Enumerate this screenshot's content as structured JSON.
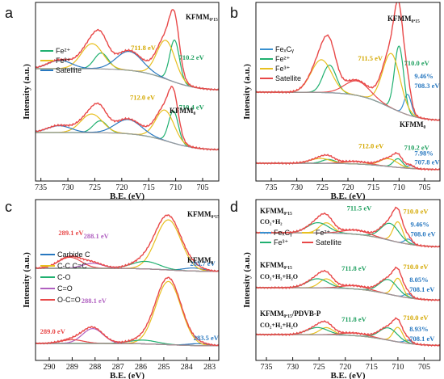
{
  "chart_data": [
    {
      "type": "line",
      "panel": "a",
      "xlabel": "B.E. (eV)",
      "ylabel": "Intensity (a.u.)",
      "xlim": [
        736,
        702
      ],
      "xticks": [
        735,
        730,
        725,
        720,
        715,
        710,
        705
      ],
      "legend": {
        "placement": "left-middle",
        "entries": [
          {
            "name": "Fe²⁺",
            "color": "#20b070"
          },
          {
            "name": "Fe³⁺",
            "color": "#e8c020"
          },
          {
            "name": "Satellite",
            "color": "#2878c0"
          }
        ]
      },
      "spectra": [
        {
          "sample": "KFMM₀.₁₅",
          "annotations": [
            {
              "text": "711.8 eV",
              "color": "#d4a800"
            },
            {
              "text": "710.2 eV",
              "color": "#20a060"
            }
          ],
          "components": [
            {
              "role": "Fe²⁺",
              "color": "#20b070",
              "peaks": [
                [
                  710.2,
                  1.0,
                  0.9
                ],
                [
                  723.8,
                  0.38,
                  1.3
                ]
              ]
            },
            {
              "role": "Fe³⁺",
              "color": "#e8c020",
              "peaks": [
                [
                  711.8,
                  0.92,
                  1.7
                ],
                [
                  725.5,
                  0.6,
                  2.0
                ]
              ]
            },
            {
              "role": "Satellite",
              "color": "#2878c0",
              "peaks": [
                [
                  718.6,
                  0.45,
                  2.4
                ],
                [
                  731.5,
                  0.2,
                  2.2
                ]
              ]
            },
            {
              "role": "envelope",
              "color": "#e84848"
            },
            {
              "role": "background",
              "color": "#999999"
            }
          ]
        },
        {
          "sample": "KFMM₀",
          "annotations": [
            {
              "text": "712.0 eV",
              "color": "#d4a800"
            },
            {
              "text": "710.4 eV",
              "color": "#20a060"
            }
          ],
          "components": [
            {
              "role": "Fe²⁺",
              "color": "#20b070",
              "peaks": [
                [
                  710.4,
                  0.95,
                  0.9
                ],
                [
                  724.0,
                  0.35,
                  1.3
                ]
              ]
            },
            {
              "role": "Fe³⁺",
              "color": "#e8c020",
              "peaks": [
                [
                  712.0,
                  0.9,
                  1.7
                ],
                [
                  725.6,
                  0.55,
                  2.0
                ]
              ]
            },
            {
              "role": "Satellite",
              "color": "#2878c0",
              "peaks": [
                [
                  718.8,
                  0.42,
                  2.4
                ],
                [
                  731.6,
                  0.2,
                  2.2
                ]
              ]
            },
            {
              "role": "envelope",
              "color": "#e84848"
            },
            {
              "role": "background",
              "color": "#999999"
            }
          ]
        }
      ]
    },
    {
      "type": "line",
      "panel": "b",
      "xlabel": "B.E. (eV)",
      "ylabel": "Intensity (a.u.)",
      "xlim": [
        738,
        702
      ],
      "xticks": [
        735,
        730,
        725,
        720,
        715,
        710,
        705
      ],
      "legend": {
        "placement": "left-middle",
        "entries": [
          {
            "name": "FeₓCᵧ",
            "color": "#3890d0"
          },
          {
            "name": "Fe²⁺",
            "color": "#20b070"
          },
          {
            "name": "Fe³⁺",
            "color": "#e8c020"
          },
          {
            "name": "Satellite",
            "color": "#e84848"
          }
        ]
      },
      "spectra": [
        {
          "sample": "KFMM₀.₁₅",
          "annotations": [
            {
              "text": "711.5 eV",
              "color": "#d4a800"
            },
            {
              "text": "710.0 eV",
              "color": "#20a060"
            },
            {
              "text": "9.46%",
              "color": "#2878c0"
            },
            {
              "text": "708.3 eV",
              "color": "#2878c0"
            }
          ],
          "components": [
            {
              "role": "FeₓCᵧ",
              "color": "#3890d0",
              "peaks": [
                [
                  708.3,
                  0.28,
                  0.7
                ]
              ]
            },
            {
              "role": "Fe²⁺",
              "color": "#20b070",
              "peaks": [
                [
                  710.0,
                  0.9,
                  0.9
                ],
                [
                  723.6,
                  0.38,
                  1.3
                ]
              ]
            },
            {
              "role": "Fe³⁺",
              "color": "#e8c020",
              "peaks": [
                [
                  711.5,
                  0.75,
                  1.7
                ],
                [
                  725.2,
                  0.45,
                  2.0
                ]
              ]
            },
            {
              "role": "Satellite",
              "color": "#e84848",
              "peaks": [
                [
                  718.2,
                  0.2,
                  2.4
                ]
              ]
            },
            {
              "role": "envelope",
              "color": "#e84848"
            },
            {
              "role": "background",
              "color": "#999999"
            }
          ]
        },
        {
          "sample": "KFMM₀",
          "annotations": [
            {
              "text": "712.0 eV",
              "color": "#d4a800"
            },
            {
              "text": "710.2 eV",
              "color": "#20a060"
            },
            {
              "text": "7.98%",
              "color": "#2878c0"
            },
            {
              "text": "707.8 eV",
              "color": "#2878c0"
            }
          ],
          "components": [
            {
              "role": "FeₓCᵧ",
              "color": "#3890d0",
              "peaks": [
                [
                  707.8,
                  0.06,
                  0.7
                ]
              ]
            },
            {
              "role": "Fe²⁺",
              "color": "#20b070",
              "peaks": [
                [
                  710.2,
                  0.18,
                  0.9
                ],
                [
                  723.8,
                  0.08,
                  1.3
                ]
              ]
            },
            {
              "role": "Fe³⁺",
              "color": "#e8c020",
              "peaks": [
                [
                  712.0,
                  0.16,
                  1.7
                ],
                [
                  725.4,
                  0.1,
                  2.0
                ]
              ]
            },
            {
              "role": "Satellite",
              "color": "#e84848",
              "peaks": [
                [
                  718.5,
                  0.05,
                  2.4
                ]
              ]
            },
            {
              "role": "envelope",
              "color": "#e84848"
            },
            {
              "role": "background",
              "color": "#999999"
            }
          ]
        }
      ]
    },
    {
      "type": "line",
      "panel": "c",
      "xlabel": "B.E. (eV)",
      "ylabel": "Intensity (a.u.)",
      "xlim": [
        290.6,
        282.6
      ],
      "xticks": [
        290,
        289,
        288,
        287,
        286,
        285,
        284,
        283
      ],
      "legend": {
        "placement": "left-middle",
        "entries": [
          {
            "name": "Carbide C",
            "color": "#2878c0"
          },
          {
            "name": "C-C  C=C",
            "color": "#e8c020"
          },
          {
            "name": "C-O",
            "color": "#20b070"
          },
          {
            "name": "C=O",
            "color": "#b060c0"
          },
          {
            "name": "O-C=O",
            "color": "#e84848"
          }
        ]
      },
      "spectra": [
        {
          "sample": "KFMM₀.₁₅",
          "annotations": [
            {
              "text": "289.1 eV",
              "color": "#e84848"
            },
            {
              "text": "288.1 eV",
              "color": "#b060c0"
            },
            {
              "text": "283.7 eV",
              "color": "#2878c0"
            }
          ],
          "components": [
            {
              "role": "Carbide C",
              "color": "#2878c0",
              "peaks": [
                [
                  283.7,
                  0.06,
                  0.45
                ]
              ]
            },
            {
              "role": "C-C  C=C",
              "color": "#e8c020",
              "peaks": [
                [
                  284.8,
                  1.0,
                  0.55
                ]
              ]
            },
            {
              "role": "C-O",
              "color": "#20b070",
              "peaks": [
                [
                  285.8,
                  0.15,
                  0.6
                ]
              ]
            },
            {
              "role": "C=O",
              "color": "#b060c0",
              "peaks": [
                [
                  288.1,
                  0.1,
                  0.45
                ]
              ]
            },
            {
              "role": "O-C=O",
              "color": "#e84848",
              "peaks": [
                [
                  289.1,
                  0.22,
                  0.5
                ]
              ]
            },
            {
              "role": "envelope",
              "color": "#e84848"
            },
            {
              "role": "background",
              "color": "#999999"
            }
          ]
        },
        {
          "sample": "KFMM₀",
          "annotations": [
            {
              "text": "288.1 eV",
              "color": "#b060c0"
            },
            {
              "text": "289.0 eV",
              "color": "#e84848"
            },
            {
              "text": "283.5 eV",
              "color": "#2878c0"
            }
          ],
          "components": [
            {
              "role": "Carbide C",
              "color": "#2878c0",
              "peaks": [
                [
                  283.5,
                  0.05,
                  0.45
                ]
              ]
            },
            {
              "role": "C-C  C=C",
              "color": "#e8c020",
              "peaks": [
                [
                  284.8,
                  1.7,
                  0.55
                ]
              ]
            },
            {
              "role": "C-O",
              "color": "#20b070",
              "peaks": [
                [
                  285.9,
                  0.1,
                  0.6
                ]
              ]
            },
            {
              "role": "C=O",
              "color": "#b060c0",
              "peaks": [
                [
                  288.1,
                  0.4,
                  0.45
                ]
              ]
            },
            {
              "role": "O-C=O",
              "color": "#e84848",
              "peaks": [
                [
                  289.0,
                  0.1,
                  0.5
                ]
              ]
            },
            {
              "role": "envelope",
              "color": "#e84848"
            },
            {
              "role": "background",
              "color": "#999999"
            }
          ]
        }
      ]
    },
    {
      "type": "line",
      "panel": "d",
      "xlabel": "B.E. (eV)",
      "ylabel": "Intensity (a.u.)",
      "xlim": [
        737,
        702
      ],
      "xticks": [
        735,
        730,
        725,
        720,
        715,
        710,
        705
      ],
      "legend": {
        "placement": "top-middle",
        "entries": [
          {
            "name": "FeₓCᵧ",
            "color": "#3890d0"
          },
          {
            "name": "Fe²⁺",
            "color": "#e8c020"
          },
          {
            "name": "Fe³⁺",
            "color": "#20b070"
          },
          {
            "name": "Satellite",
            "color": "#e84848"
          }
        ]
      },
      "spectra": [
        {
          "sample": "KFMM₀.₁₅",
          "condition": "CO₂+H₂",
          "annotations": [
            {
              "text": "711.5 eV",
              "color": "#20a060"
            },
            {
              "text": "710.0 eV",
              "color": "#d4a800"
            },
            {
              "text": "9.46%",
              "color": "#2878c0"
            },
            {
              "text": "708.0 eV",
              "color": "#2878c0"
            }
          ],
          "components": [
            {
              "role": "FeₓCᵧ",
              "color": "#3890d0",
              "peaks": [
                [
                  708.0,
                  0.15,
                  0.7
                ]
              ]
            },
            {
              "role": "Fe²⁺",
              "color": "#e8c020",
              "peaks": [
                [
                  710.0,
                  0.6,
                  0.9
                ],
                [
                  723.6,
                  0.3,
                  1.3
                ]
              ]
            },
            {
              "role": "Fe³⁺",
              "color": "#20b070",
              "peaks": [
                [
                  711.5,
                  0.5,
                  1.7
                ],
                [
                  725.2,
                  0.3,
                  2.0
                ]
              ]
            },
            {
              "role": "Satellite",
              "color": "#e84848",
              "peaks": [
                [
                  718.0,
                  0.12,
                  2.4
                ]
              ]
            },
            {
              "role": "envelope",
              "color": "#e84848"
            },
            {
              "role": "background",
              "color": "#999999"
            }
          ]
        },
        {
          "sample": "KFMM₀.₁₅",
          "condition": "CO₂+H₂+H₂O",
          "annotations": [
            {
              "text": "711.8 eV",
              "color": "#20a060"
            },
            {
              "text": "710.0 eV",
              "color": "#d4a800"
            },
            {
              "text": "8.05%",
              "color": "#2878c0"
            },
            {
              "text": "708.1 eV",
              "color": "#2878c0"
            }
          ],
          "components": [
            {
              "role": "FeₓCᵧ",
              "color": "#3890d0",
              "peaks": [
                [
                  708.1,
                  0.12,
                  0.7
                ]
              ]
            },
            {
              "role": "Fe²⁺",
              "color": "#e8c020",
              "peaks": [
                [
                  710.0,
                  0.55,
                  0.9
                ],
                [
                  723.6,
                  0.28,
                  1.3
                ]
              ]
            },
            {
              "role": "Fe³⁺",
              "color": "#20b070",
              "peaks": [
                [
                  711.8,
                  0.45,
                  1.7
                ],
                [
                  725.3,
                  0.28,
                  2.0
                ]
              ]
            },
            {
              "role": "Satellite",
              "color": "#e84848",
              "peaks": [
                [
                  718.2,
                  0.1,
                  2.4
                ]
              ]
            },
            {
              "role": "envelope",
              "color": "#e84848"
            },
            {
              "role": "background",
              "color": "#999999"
            }
          ]
        },
        {
          "sample": "KFMM₀.₁₅/PDVB-P",
          "condition": "CO₂+H₂+H₂O",
          "annotations": [
            {
              "text": "711.8 eV",
              "color": "#20a060"
            },
            {
              "text": "710.0 eV",
              "color": "#d4a800"
            },
            {
              "text": "8.93%",
              "color": "#2878c0"
            },
            {
              "text": "708.1 eV",
              "color": "#2878c0"
            }
          ],
          "components": [
            {
              "role": "FeₓCᵧ",
              "color": "#3890d0",
              "peaks": [
                [
                  708.1,
                  0.1,
                  0.7
                ]
              ]
            },
            {
              "role": "Fe²⁺",
              "color": "#e8c020",
              "peaks": [
                [
                  710.0,
                  0.45,
                  0.9
                ],
                [
                  723.6,
                  0.22,
                  1.3
                ]
              ]
            },
            {
              "role": "Fe³⁺",
              "color": "#20b070",
              "peaks": [
                [
                  711.8,
                  0.38,
                  1.7
                ],
                [
                  725.3,
                  0.22,
                  2.0
                ]
              ]
            },
            {
              "role": "Satellite",
              "color": "#e84848",
              "peaks": [
                [
                  718.2,
                  0.08,
                  2.4
                ]
              ]
            },
            {
              "role": "envelope",
              "color": "#e84848"
            },
            {
              "role": "background",
              "color": "#999999"
            }
          ]
        }
      ]
    }
  ]
}
